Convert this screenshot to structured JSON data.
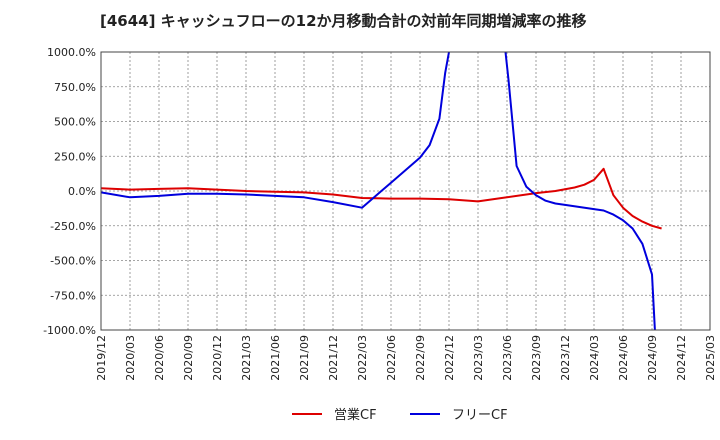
{
  "chart_data": {
    "type": "line",
    "title": "[4644]  キャッシュフローの12か月移動合計の対前年同期増減率の推移",
    "xlabel": "",
    "ylabel": "",
    "ylim": [
      -1000,
      1000
    ],
    "yticks": [
      1000,
      750,
      500,
      250,
      0,
      -250,
      -500,
      -750,
      -1000
    ],
    "ytick_labels": [
      "1000.0%",
      "750.0%",
      "500.0%",
      "250.0%",
      "0.0%",
      "-250.0%",
      "-500.0%",
      "-750.0%",
      "-1000.0%"
    ],
    "xtick_labels": [
      "2019/12",
      "2020/03",
      "2020/06",
      "2020/09",
      "2020/12",
      "2021/03",
      "2021/06",
      "2021/09",
      "2021/12",
      "2022/03",
      "2022/06",
      "2022/09",
      "2022/12",
      "2023/03",
      "2023/06",
      "2023/09",
      "2023/12",
      "2024/03",
      "2024/06",
      "2024/09",
      "2024/12",
      "2025/03"
    ],
    "grid": true,
    "legend_position": "bottom",
    "series": [
      {
        "name": "営業CF",
        "color": "#dd0000",
        "points": [
          [
            0,
            20
          ],
          [
            1,
            10
          ],
          [
            2,
            15
          ],
          [
            3,
            20
          ],
          [
            4,
            10
          ],
          [
            5,
            0
          ],
          [
            6,
            -5
          ],
          [
            7,
            -10
          ],
          [
            8,
            -25
          ],
          [
            9,
            -50
          ],
          [
            10,
            -55
          ],
          [
            11,
            -55
          ],
          [
            12,
            -60
          ],
          [
            13,
            -75
          ],
          [
            14,
            -45
          ],
          [
            15,
            -15
          ],
          [
            15.67,
            0
          ],
          [
            16.33,
            25
          ],
          [
            16.67,
            45
          ],
          [
            17,
            80
          ],
          [
            17.33,
            160
          ],
          [
            17.67,
            -30
          ],
          [
            18,
            -120
          ],
          [
            18.33,
            -180
          ],
          [
            18.67,
            -220
          ],
          [
            19,
            -250
          ],
          [
            19.33,
            -270
          ]
        ]
      },
      {
        "name": "フリーCF",
        "color": "#0000dd",
        "points": [
          [
            0,
            -10
          ],
          [
            1,
            -45
          ],
          [
            2,
            -35
          ],
          [
            3,
            -20
          ],
          [
            4,
            -20
          ],
          [
            5,
            -25
          ],
          [
            6,
            -35
          ],
          [
            7,
            -45
          ],
          [
            8,
            -80
          ],
          [
            9,
            -120
          ],
          [
            10,
            60
          ],
          [
            11,
            240
          ],
          [
            11.33,
            330
          ],
          [
            11.67,
            520
          ],
          [
            11.87,
            850
          ],
          [
            12,
            1000
          ],
          [
            null,
            null
          ],
          [
            13.95,
            1000
          ],
          [
            14.05,
            800
          ],
          [
            14.33,
            180
          ],
          [
            14.67,
            30
          ],
          [
            15,
            -30
          ],
          [
            15.33,
            -70
          ],
          [
            15.67,
            -90
          ],
          [
            16,
            -100
          ],
          [
            17,
            -130
          ],
          [
            17.33,
            -140
          ],
          [
            17.67,
            -170
          ],
          [
            18,
            -210
          ],
          [
            18.33,
            -270
          ],
          [
            18.67,
            -380
          ],
          [
            19,
            -600
          ],
          [
            19.1,
            -1000
          ]
        ]
      }
    ]
  }
}
